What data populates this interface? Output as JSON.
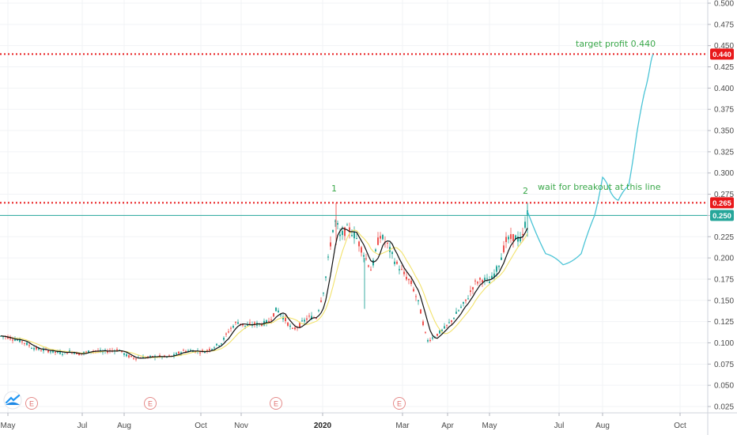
{
  "chart_data": {
    "type": "candlestick",
    "ylim": [
      0.015,
      0.505
    ],
    "y_ticks": [
      "0.500",
      "0.475",
      "0.450",
      "0.425",
      "0.400",
      "0.375",
      "0.350",
      "0.325",
      "0.300",
      "0.275",
      "0.250",
      "0.225",
      "0.200",
      "0.175",
      "0.150",
      "0.125",
      "0.100",
      "0.075",
      "0.050",
      "0.025"
    ],
    "x_ticks": [
      {
        "label": "May",
        "bold": false
      },
      {
        "label": "Jul",
        "bold": false
      },
      {
        "label": "Aug",
        "bold": false
      },
      {
        "label": "Oct",
        "bold": false
      },
      {
        "label": "Nov",
        "bold": false
      },
      {
        "label": "2020",
        "bold": true
      },
      {
        "label": "Mar",
        "bold": false
      },
      {
        "label": "Apr",
        "bold": false
      },
      {
        "label": "May",
        "bold": false
      },
      {
        "label": "Jul",
        "bold": false
      },
      {
        "label": "Aug",
        "bold": false
      },
      {
        "label": "Oct",
        "bold": false
      }
    ],
    "price_badges": [
      {
        "value": 0.44,
        "label": "0.440",
        "color": "#e8191b",
        "line": "dotted"
      },
      {
        "value": 0.265,
        "label": "0.265",
        "color": "#e8191b",
        "line": "dotted"
      },
      {
        "value": 0.25,
        "label": "0.250",
        "color": "#26a69a",
        "line": "solid"
      }
    ],
    "annotations": [
      {
        "text": "target profit 0.440",
        "color": "#3aa84a"
      },
      {
        "text": "wait for breakout at this line",
        "color": "#3aa84a"
      },
      {
        "text": "1",
        "color": "#3aa84a"
      },
      {
        "text": "2",
        "color": "#3aa84a"
      }
    ],
    "earnings_markers": [
      "E",
      "E",
      "E",
      "E"
    ],
    "series": [
      {
        "kind": "price",
        "color_up": "#26a69a",
        "color_down": "#ef5350"
      },
      {
        "kind": "moving-average",
        "color": "#000000"
      },
      {
        "kind": "moving-average",
        "color": "#f2e26b"
      }
    ],
    "projection_color": "#4bc4d6",
    "price_path": [
      [
        0,
        0.108
      ],
      [
        10,
        0.107
      ],
      [
        20,
        0.104
      ],
      [
        30,
        0.101
      ],
      [
        40,
        0.095
      ],
      [
        50,
        0.092
      ],
      [
        60,
        0.091
      ],
      [
        70,
        0.089
      ],
      [
        80,
        0.088
      ],
      [
        90,
        0.09
      ],
      [
        100,
        0.087
      ],
      [
        110,
        0.089
      ],
      [
        120,
        0.091
      ],
      [
        130,
        0.089
      ],
      [
        140,
        0.091
      ],
      [
        150,
        0.092
      ],
      [
        160,
        0.085
      ],
      [
        170,
        0.082
      ],
      [
        180,
        0.083
      ],
      [
        190,
        0.083
      ],
      [
        200,
        0.084
      ],
      [
        210,
        0.083
      ],
      [
        220,
        0.085
      ],
      [
        230,
        0.09
      ],
      [
        240,
        0.091
      ],
      [
        250,
        0.09
      ],
      [
        260,
        0.09
      ],
      [
        270,
        0.095
      ],
      [
        280,
        0.1
      ],
      [
        290,
        0.115
      ],
      [
        300,
        0.125
      ],
      [
        310,
        0.12
      ],
      [
        320,
        0.122
      ],
      [
        330,
        0.122
      ],
      [
        340,
        0.125
      ],
      [
        350,
        0.14
      ],
      [
        360,
        0.128
      ],
      [
        370,
        0.115
      ],
      [
        380,
        0.122
      ],
      [
        390,
        0.13
      ],
      [
        400,
        0.13
      ],
      [
        410,
        0.165
      ],
      [
        420,
        0.23
      ],
      [
        425,
        0.245
      ],
      [
        430,
        0.225
      ],
      [
        440,
        0.235
      ],
      [
        450,
        0.225
      ],
      [
        460,
        0.205
      ],
      [
        470,
        0.185
      ],
      [
        480,
        0.228
      ],
      [
        490,
        0.215
      ],
      [
        500,
        0.195
      ],
      [
        510,
        0.182
      ],
      [
        520,
        0.17
      ],
      [
        530,
        0.145
      ],
      [
        540,
        0.102
      ],
      [
        550,
        0.108
      ],
      [
        560,
        0.115
      ],
      [
        570,
        0.125
      ],
      [
        580,
        0.138
      ],
      [
        590,
        0.15
      ],
      [
        600,
        0.17
      ],
      [
        610,
        0.175
      ],
      [
        620,
        0.172
      ],
      [
        630,
        0.19
      ],
      [
        640,
        0.22
      ],
      [
        650,
        0.225
      ],
      [
        660,
        0.22
      ],
      [
        667,
        0.255
      ]
    ],
    "projection_path": [
      [
        667,
        0.255
      ],
      [
        690,
        0.205
      ],
      [
        712,
        0.192
      ],
      [
        735,
        0.205
      ],
      [
        752,
        0.25
      ],
      [
        762,
        0.295
      ],
      [
        772,
        0.278
      ],
      [
        782,
        0.268
      ],
      [
        795,
        0.285
      ],
      [
        805,
        0.345
      ],
      [
        815,
        0.395
      ],
      [
        822,
        0.425
      ],
      [
        826,
        0.44
      ]
    ]
  }
}
